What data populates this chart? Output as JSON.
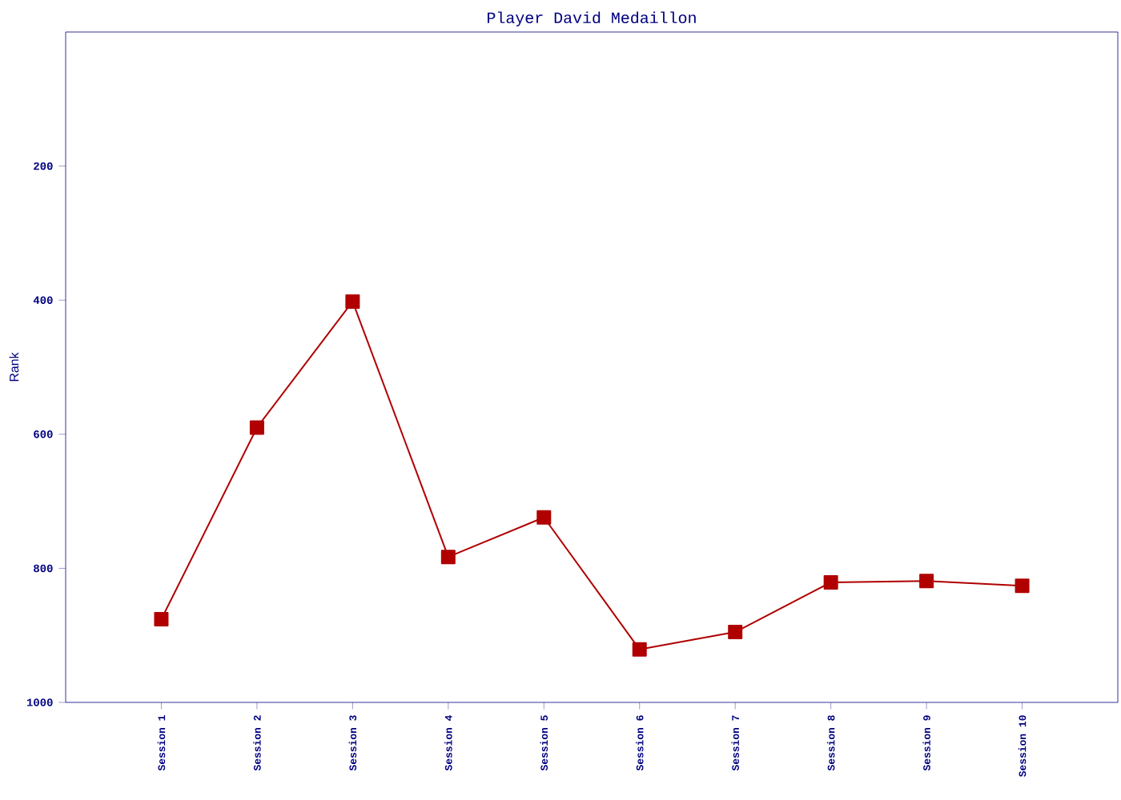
{
  "chart_data": {
    "type": "line",
    "title": "Player David Medaillon",
    "ylabel": "Rank",
    "categories": [
      "Session 1",
      "Session 2",
      "Session 3",
      "Session 4",
      "Session 5",
      "Session 6",
      "Session 7",
      "Session 8",
      "Session 9",
      "Session 10"
    ],
    "series": [
      {
        "color": "#b00000",
        "values": [
          876,
          590,
          402,
          783,
          724,
          921,
          895,
          821,
          819,
          826
        ]
      }
    ],
    "ylim": [
      1000,
      0
    ],
    "yticks": [
      200,
      400,
      600,
      800,
      1000
    ],
    "marker": "square",
    "grid": false
  }
}
